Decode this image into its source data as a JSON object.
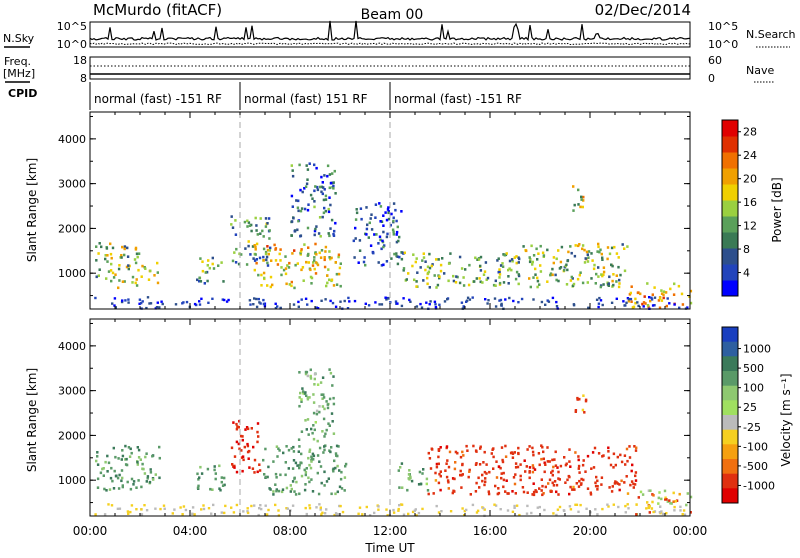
{
  "header": {
    "station": "McMurdo (fitACF)",
    "beam": "Beam 00",
    "date": "02/Dec/2014"
  },
  "nsky": {
    "label": "N.Sky",
    "tick_top": "10^5",
    "tick_bottom": "10^0"
  },
  "nsearch": {
    "label": "N.Search",
    "tick_top": "10^5",
    "tick_bottom": "10^0"
  },
  "freq": {
    "label_line1": "Freq.",
    "label_line2": "[MHz]",
    "tick_top": "18",
    "tick_bottom": "8"
  },
  "nave": {
    "label": "Nave",
    "tick_top": "60",
    "tick_bottom": "0"
  },
  "cpid": {
    "label": "CPID",
    "segments": [
      {
        "label": "normal (fast) -151 RF",
        "start_h": 0,
        "end_h": 6
      },
      {
        "label": "normal (fast) 151 RF",
        "start_h": 6,
        "end_h": 12
      },
      {
        "label": "normal (fast) -151 RF",
        "start_h": 12,
        "end_h": 24
      }
    ]
  },
  "colors": {
    "power": [
      "#0000ff",
      "#2244bb",
      "#2d4f8c",
      "#3a7a55",
      "#5aa05a",
      "#9ad040",
      "#f0d000",
      "#f0a000",
      "#f07000",
      "#e03000",
      "#e00000"
    ],
    "velocity": [
      "#1a3fbf",
      "#2e5fa0",
      "#3b7a5a",
      "#5a9a68",
      "#8ec870",
      "#a0e060",
      "#bbbbbb",
      "#f5d020",
      "#f5a010",
      "#f07010",
      "#e03010",
      "#e00000"
    ]
  },
  "chart_data": [
    {
      "type": "heatmap",
      "name": "power",
      "title": "",
      "xlabel": "Time UT",
      "ylabel": "Slant Range [km]",
      "xlim": [
        0,
        24
      ],
      "ylim": [
        200,
        4600
      ],
      "x_ticks": [
        "00:00",
        "04:00",
        "08:00",
        "12:00",
        "16:00",
        "20:00",
        "00:00"
      ],
      "y_ticks": [
        "1000",
        "2000",
        "3000",
        "4000"
      ],
      "colorbar": {
        "label": "Power [dB]",
        "ticks": [
          "4",
          "8",
          "12",
          "16",
          "20",
          "24",
          "28"
        ],
        "range": [
          0,
          30
        ]
      },
      "regions": [
        {
          "t0": 0.2,
          "t1": 2.0,
          "r0": 700,
          "r1": 1700,
          "level": 14
        },
        {
          "t0": 2.0,
          "t1": 2.7,
          "r0": 800,
          "r1": 1300,
          "level": 16
        },
        {
          "t0": 4.2,
          "t1": 5.3,
          "r0": 800,
          "r1": 1400,
          "level": 12
        },
        {
          "t0": 5.6,
          "t1": 7.2,
          "r0": 1200,
          "r1": 2300,
          "level": 10
        },
        {
          "t0": 6.5,
          "t1": 10.0,
          "r0": 700,
          "r1": 1700,
          "level": 18
        },
        {
          "t0": 8.0,
          "t1": 9.8,
          "r0": 1800,
          "r1": 3500,
          "level": 8
        },
        {
          "t0": 10.5,
          "t1": 12.5,
          "r0": 1200,
          "r1": 2600,
          "level": 6
        },
        {
          "t0": 12.5,
          "t1": 17.2,
          "r0": 700,
          "r1": 1500,
          "level": 12
        },
        {
          "t0": 17.2,
          "t1": 21.5,
          "r0": 700,
          "r1": 1700,
          "level": 14
        },
        {
          "t0": 19.2,
          "t1": 19.7,
          "r0": 2400,
          "r1": 3100,
          "level": 16
        },
        {
          "t0": 21.5,
          "t1": 24.0,
          "r0": 250,
          "r1": 800,
          "level": 20
        }
      ]
    },
    {
      "type": "heatmap",
      "name": "velocity",
      "title": "",
      "xlabel": "Time UT",
      "ylabel": "Slant Range [km]",
      "xlim": [
        0,
        24
      ],
      "ylim": [
        200,
        4600
      ],
      "x_ticks": [
        "00:00",
        "04:00",
        "08:00",
        "12:00",
        "16:00",
        "20:00",
        "00:00"
      ],
      "y_ticks": [
        "1000",
        "2000",
        "3000",
        "4000"
      ],
      "colorbar": {
        "label": "Velocity [m s⁻¹]",
        "ticks": [
          "1000",
          "500",
          "100",
          "25",
          "-25",
          "-100",
          "-500",
          "-1000"
        ]
      },
      "regions": [
        {
          "t0": 0.2,
          "t1": 2.8,
          "r0": 800,
          "r1": 1800,
          "velocity": 400
        },
        {
          "t0": 4.2,
          "t1": 5.4,
          "r0": 800,
          "r1": 1400,
          "velocity": 350
        },
        {
          "t0": 5.6,
          "t1": 6.8,
          "r0": 1200,
          "r1": 2400,
          "velocity": -400
        },
        {
          "t0": 6.8,
          "t1": 10.2,
          "r0": 700,
          "r1": 1800,
          "velocity": 400
        },
        {
          "t0": 8.3,
          "t1": 9.8,
          "r0": 1900,
          "r1": 3500,
          "velocity": 300
        },
        {
          "t0": 12.3,
          "t1": 13.5,
          "r0": 800,
          "r1": 1400,
          "velocity": 300
        },
        {
          "t0": 13.5,
          "t1": 21.8,
          "r0": 700,
          "r1": 1800,
          "velocity": -300
        },
        {
          "t0": 19.3,
          "t1": 19.8,
          "r0": 2500,
          "r1": 3100,
          "velocity": -200
        },
        {
          "t0": 21.8,
          "t1": 24.0,
          "r0": 250,
          "r1": 800,
          "velocity": 20
        }
      ]
    }
  ]
}
